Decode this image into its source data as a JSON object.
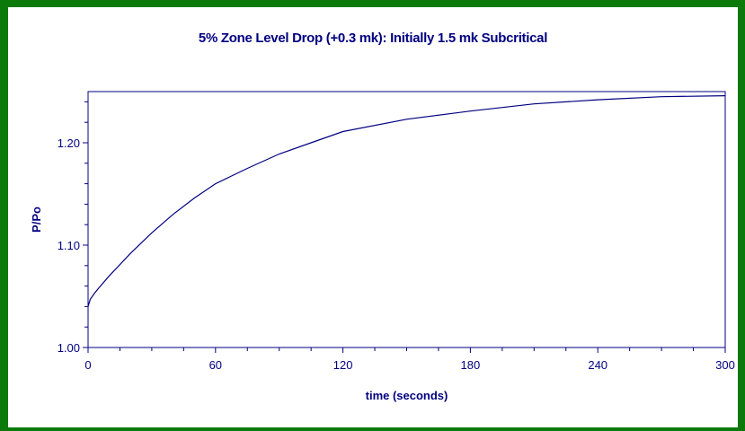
{
  "chart_data": {
    "type": "line",
    "title": "5% Zone Level Drop (+0.3 mk): Initially 1.5 mk Subcritical",
    "xlabel": "time (seconds)",
    "ylabel": "P/Po",
    "xlim": [
      0,
      300
    ],
    "ylim": [
      1.0,
      1.25
    ],
    "x_ticks": [
      0,
      60,
      120,
      180,
      240,
      300
    ],
    "x_tick_labels": [
      "0",
      "60",
      "120",
      "180",
      "240",
      "300"
    ],
    "y_ticks": [
      1.0,
      1.1,
      1.2
    ],
    "y_tick_labels": [
      "1.00",
      "1.10",
      "1.20"
    ],
    "grid": false,
    "series": [
      {
        "x": [
          0,
          1,
          3,
          5,
          10,
          20,
          30,
          40,
          50,
          60,
          75,
          90,
          105,
          120,
          150,
          180,
          210,
          240,
          270,
          300
        ],
        "y": [
          1.04,
          1.047,
          1.053,
          1.058,
          1.07,
          1.092,
          1.112,
          1.13,
          1.146,
          1.16,
          1.175,
          1.189,
          1.2,
          1.211,
          1.223,
          1.231,
          1.238,
          1.242,
          1.245,
          1.246
        ]
      }
    ],
    "colors": {
      "line": "#000080",
      "axis": "#000080",
      "border": "#0b7a0b"
    }
  }
}
